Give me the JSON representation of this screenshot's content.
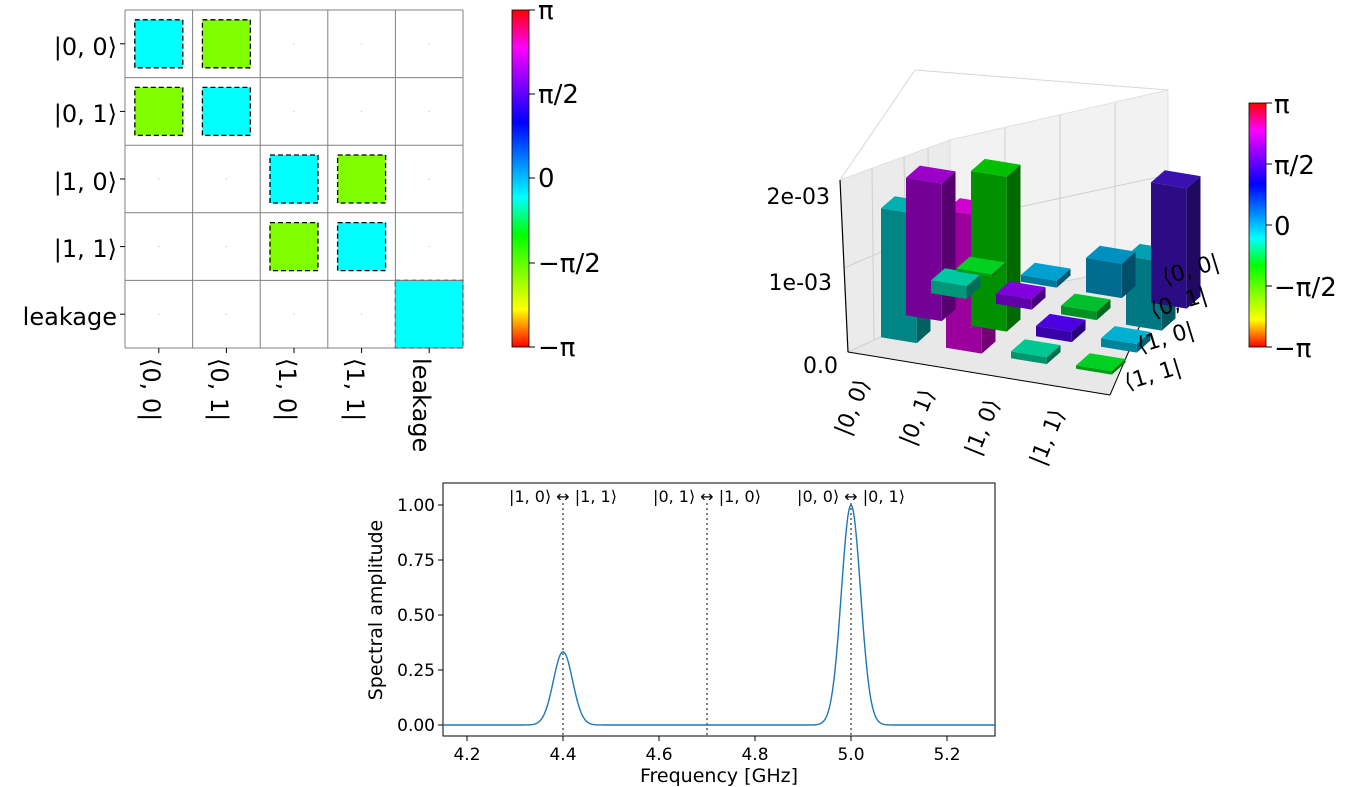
{
  "chart_data": [
    {
      "type": "heatmap",
      "title": "",
      "row_labels": [
        "|0, 0⟩",
        "|0, 1⟩",
        "|1, 0⟩",
        "|1, 1⟩",
        "leakage"
      ],
      "col_labels": [
        "⟨0, 0|",
        "⟨0, 1|",
        "⟨1, 0|",
        "⟨1, 1|",
        "leakage"
      ],
      "encoding": "square size = magnitude (relative), color = phase",
      "cells": [
        {
          "row": 0,
          "col": 0,
          "magnitude": 0.71,
          "phase": "0",
          "color": "#00ffff",
          "dashed": true
        },
        {
          "row": 0,
          "col": 1,
          "magnitude": 0.71,
          "phase": "-π/3",
          "color": "#80ff00",
          "dashed": true
        },
        {
          "row": 1,
          "col": 0,
          "magnitude": 0.71,
          "phase": "-π/3",
          "color": "#80ff00",
          "dashed": true
        },
        {
          "row": 1,
          "col": 1,
          "magnitude": 0.71,
          "phase": "0",
          "color": "#00ffff",
          "dashed": true
        },
        {
          "row": 2,
          "col": 2,
          "magnitude": 0.71,
          "phase": "0",
          "color": "#00ffff",
          "dashed": true
        },
        {
          "row": 2,
          "col": 3,
          "magnitude": 0.71,
          "phase": "-π/3",
          "color": "#80ff00",
          "dashed": true
        },
        {
          "row": 3,
          "col": 2,
          "magnitude": 0.71,
          "phase": "-π/3",
          "color": "#80ff00",
          "dashed": true
        },
        {
          "row": 3,
          "col": 3,
          "magnitude": 0.71,
          "phase": "0",
          "color": "#00ffff",
          "dashed": true
        },
        {
          "row": 4,
          "col": 4,
          "magnitude": 1.0,
          "phase": "0",
          "color": "#00ffff",
          "dashed": true
        }
      ],
      "colorbar": {
        "ticks": [
          "π",
          "π/2",
          "0",
          "−π/2",
          "−π"
        ],
        "stops": [
          "#ff0000",
          "#ffff00",
          "#80ff00",
          "#00ff00",
          "#00ffff",
          "#0080ff",
          "#0000ff",
          "#8000ff",
          "#ff00ff",
          "#ff0000"
        ]
      }
    },
    {
      "type": "bar3d",
      "x_labels": [
        "|0, 0⟩",
        "|0, 1⟩",
        "|1, 0⟩",
        "|1, 1⟩"
      ],
      "y_labels": [
        "⟨0, 0|",
        "⟨0, 1|",
        "⟨1, 0|",
        "⟨1, 1|"
      ],
      "z_ticks": [
        "0.0",
        "1e-03",
        "2e-03"
      ],
      "zlim": [
        0,
        0.002
      ],
      "bars": [
        {
          "x": 0,
          "y": 0,
          "value": 3e-05,
          "color": "#00d020"
        },
        {
          "x": 0,
          "y": 1,
          "value": 0.00015,
          "color": "#00c8a0"
        },
        {
          "x": 0,
          "y": 2,
          "value": 0.0016,
          "color": "#9a00c8"
        },
        {
          "x": 0,
          "y": 3,
          "value": 0.0015,
          "color": "#00b0b0"
        },
        {
          "x": 1,
          "y": 0,
          "value": 8e-05,
          "color": "#00a0d0"
        },
        {
          "x": 1,
          "y": 1,
          "value": 0.00012,
          "color": "#8000e0"
        },
        {
          "x": 1,
          "y": 2,
          "value": 0.0018,
          "color": "#00c000"
        },
        {
          "x": 1,
          "y": 3,
          "value": 0.0016,
          "color": "#d000d0"
        },
        {
          "x": 2,
          "y": 0,
          "value": 0.0004,
          "color": "#0090c0"
        },
        {
          "x": 2,
          "y": 1,
          "value": 0.0001,
          "color": "#00c030"
        },
        {
          "x": 2,
          "y": 2,
          "value": 0.00012,
          "color": "#4a00e0"
        },
        {
          "x": 2,
          "y": 3,
          "value": 8e-05,
          "color": "#00c890"
        },
        {
          "x": 3,
          "y": 0,
          "value": 0.0014,
          "color": "#3a10b0"
        },
        {
          "x": 3,
          "y": 1,
          "value": 0.0008,
          "color": "#00a0b0"
        },
        {
          "x": 3,
          "y": 2,
          "value": 0.0001,
          "color": "#00b0d0"
        },
        {
          "x": 3,
          "y": 3,
          "value": 4e-05,
          "color": "#00d020"
        }
      ],
      "colorbar": {
        "ticks": [
          "π",
          "π/2",
          "0",
          "−π/2",
          "−π"
        ],
        "stops": [
          "#ff0000",
          "#ffff00",
          "#80ff00",
          "#00ff00",
          "#00ffff",
          "#0080ff",
          "#0000ff",
          "#8000ff",
          "#ff00ff",
          "#ff0000"
        ]
      }
    },
    {
      "type": "line",
      "xlabel": "Frequency [GHz]",
      "ylabel": "Spectral amplitude",
      "xlim": [
        4.15,
        5.3
      ],
      "ylim": [
        -0.05,
        1.1
      ],
      "xticks": [
        4.2,
        4.4,
        4.6,
        4.8,
        5.0,
        5.2
      ],
      "xtick_labels": [
        "4.2",
        "4.4",
        "4.6",
        "4.8",
        "5.0",
        "5.2"
      ],
      "yticks": [
        0,
        0.25,
        0.5,
        0.75,
        1.0
      ],
      "ytick_labels": [
        "0.00",
        "0.25",
        "0.50",
        "0.75",
        "1.00"
      ],
      "line_color": "#1f77b4",
      "peaks": [
        {
          "center": 4.4,
          "amplitude": 0.333,
          "width": 0.02
        },
        {
          "center": 5.0,
          "amplitude": 1.0,
          "width": 0.02
        }
      ],
      "transitions": [
        {
          "x": 4.4,
          "label": "|1, 0⟩ ↔ |1, 1⟩"
        },
        {
          "x": 4.7,
          "label": "|0, 1⟩ ↔ |1, 0⟩"
        },
        {
          "x": 5.0,
          "label": "|0, 0⟩ ↔ |0, 1⟩"
        }
      ]
    }
  ]
}
